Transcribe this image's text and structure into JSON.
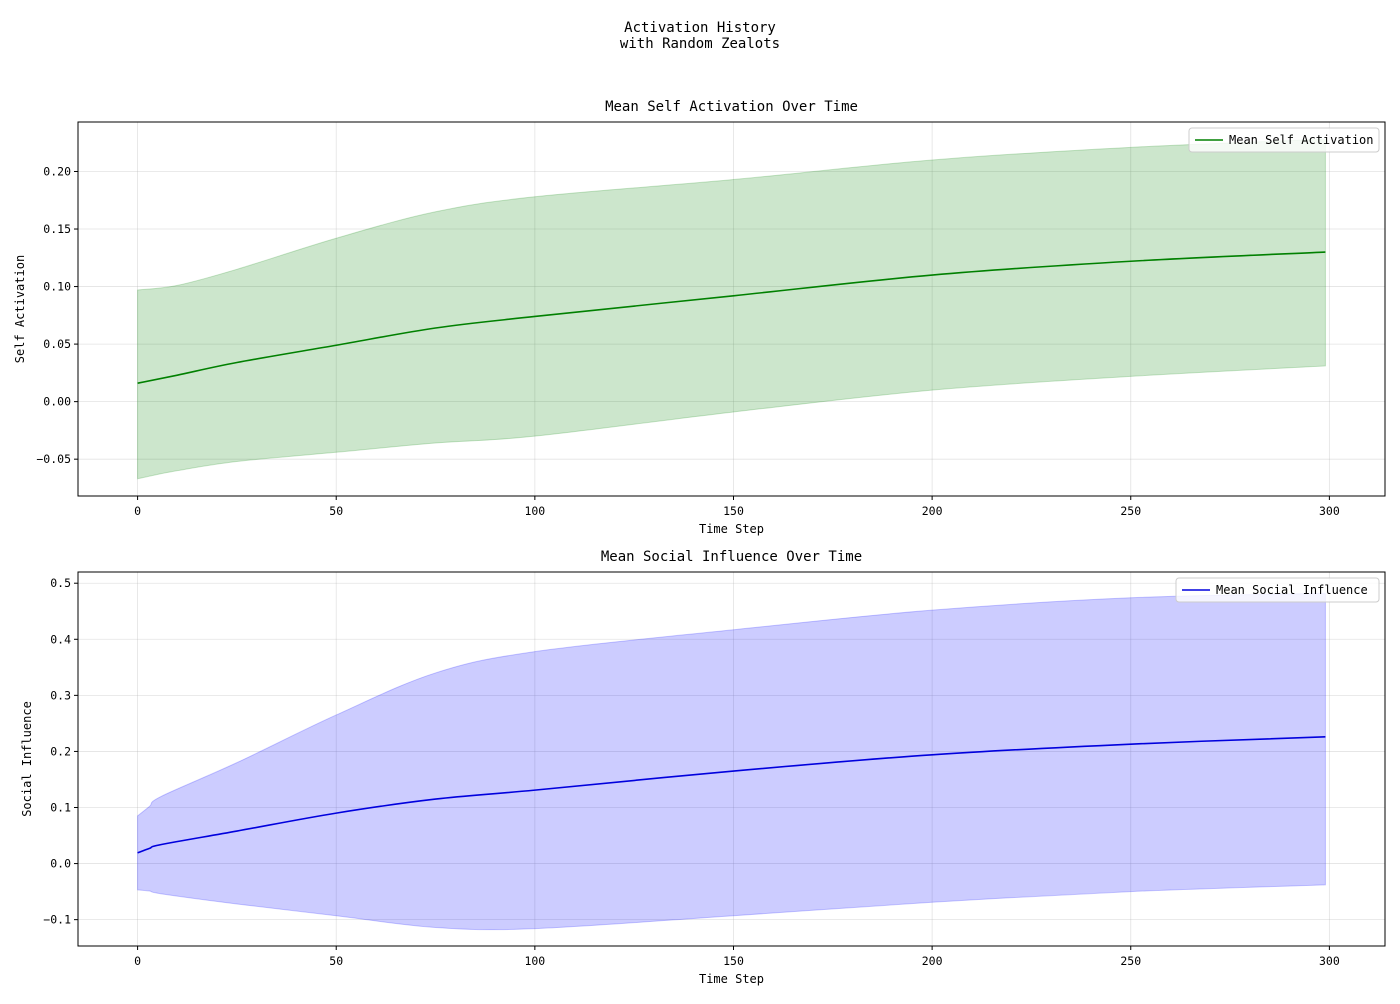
{
  "figure": {
    "suptitle_line1": "Activation History",
    "suptitle_line2": "with Random Zealots"
  },
  "chart_data": [
    {
      "type": "line",
      "title": "Mean Self Activation Over Time",
      "xlabel": "Time Step",
      "ylabel": "Self Activation",
      "xlim": [
        -15,
        314
      ],
      "ylim": [
        -0.082,
        0.243
      ],
      "xticks": [
        0,
        50,
        100,
        150,
        200,
        250,
        300
      ],
      "yticks": [
        -0.05,
        0.0,
        0.05,
        0.1,
        0.15,
        0.2
      ],
      "ytick_labels": [
        "−0.05",
        "0.00",
        "0.05",
        "0.10",
        "0.15",
        "0.20"
      ],
      "grid": true,
      "legend_position": "top-right",
      "series": [
        {
          "name": "Mean Self Activation",
          "color": "#008000",
          "band_color": "#008000",
          "x": [
            0,
            10,
            25,
            50,
            75,
            100,
            150,
            200,
            250,
            299
          ],
          "mean": [
            0.016,
            0.023,
            0.034,
            0.049,
            0.064,
            0.074,
            0.092,
            0.11,
            0.122,
            0.13
          ],
          "upper": [
            0.097,
            0.101,
            0.115,
            0.142,
            0.165,
            0.178,
            0.193,
            0.21,
            0.221,
            0.228
          ],
          "lower": [
            -0.067,
            -0.06,
            -0.052,
            -0.044,
            -0.036,
            -0.03,
            -0.009,
            0.01,
            0.022,
            0.031
          ]
        }
      ]
    },
    {
      "type": "line",
      "title": "Mean Social Influence Over Time",
      "xlabel": "Time Step",
      "ylabel": "Social Influence",
      "xlim": [
        -15,
        314
      ],
      "ylim": [
        -0.147,
        0.52
      ],
      "xticks": [
        0,
        50,
        100,
        150,
        200,
        250,
        300
      ],
      "yticks": [
        -0.1,
        0.0,
        0.1,
        0.2,
        0.3,
        0.4,
        0.5
      ],
      "ytick_labels": [
        "−0.1",
        "0.0",
        "0.1",
        "0.2",
        "0.3",
        "0.4",
        "0.5"
      ],
      "grid": true,
      "legend_position": "top-right",
      "series": [
        {
          "name": "Mean Social Influence",
          "color": "#0000dd",
          "band_color": "#0000ff",
          "x": [
            0,
            3,
            6,
            25,
            50,
            75,
            100,
            150,
            200,
            250,
            299
          ],
          "mean": [
            0.019,
            0.027,
            0.034,
            0.058,
            0.09,
            0.115,
            0.131,
            0.165,
            0.194,
            0.213,
            0.226
          ],
          "upper": [
            0.085,
            0.102,
            0.12,
            0.18,
            0.265,
            0.34,
            0.378,
            0.417,
            0.452,
            0.474,
            0.482
          ],
          "lower": [
            -0.047,
            -0.049,
            -0.054,
            -0.072,
            -0.093,
            -0.114,
            -0.116,
            -0.093,
            -0.069,
            -0.05,
            -0.038
          ]
        }
      ]
    }
  ]
}
